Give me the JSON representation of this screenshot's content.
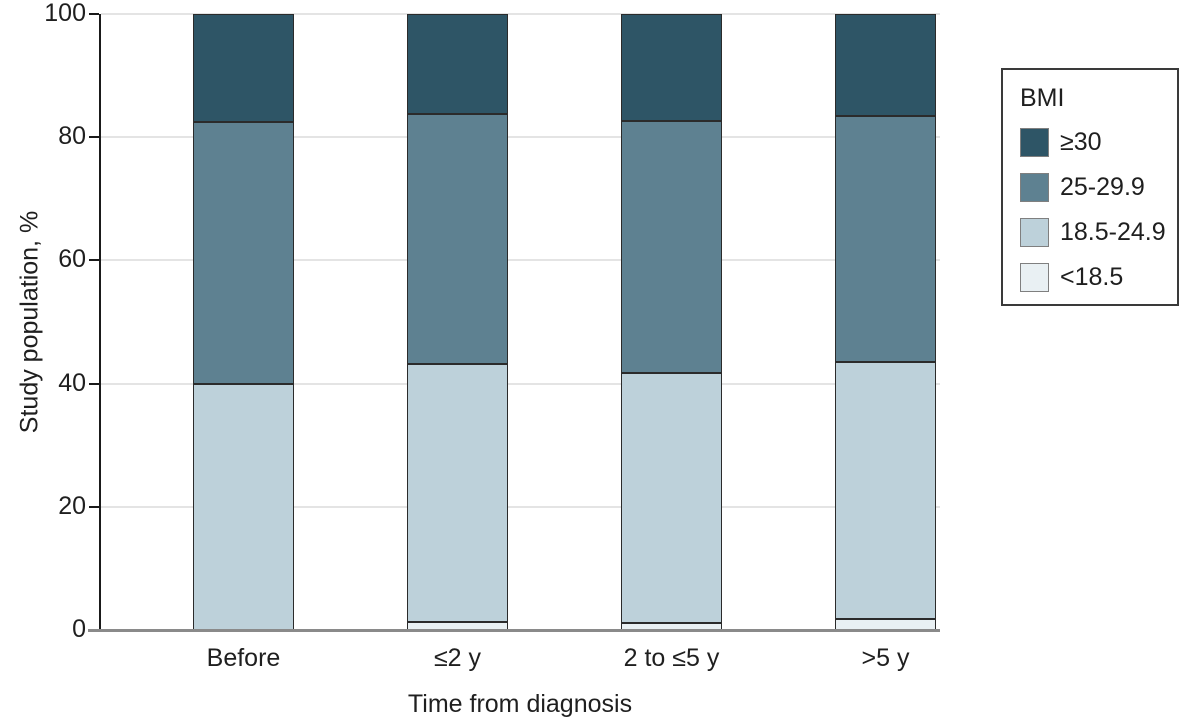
{
  "chart_data": {
    "type": "bar",
    "stacked": true,
    "title": "",
    "xlabel": "Time from diagnosis",
    "ylabel": "Study population, %",
    "categories": [
      "Before",
      "≤2 y",
      "2 to ≤5 y",
      ">5 y"
    ],
    "series": [
      {
        "name": "<18.5",
        "color": "#E9F0F3",
        "values": [
          0,
          1.3,
          1.2,
          1.8
        ]
      },
      {
        "name": "18.5-24.9",
        "color": "#BDD1DA",
        "values": [
          40.0,
          41.9,
          40.5,
          41.7
        ]
      },
      {
        "name": "25-29.9",
        "color": "#5E8191",
        "values": [
          42.4,
          40.5,
          41.0,
          40.0
        ]
      },
      {
        "name": "≥30",
        "color": "#2E5566",
        "values": [
          17.6,
          16.3,
          17.3,
          16.5
        ]
      }
    ],
    "ylim": [
      0,
      100
    ],
    "yticks": [
      0,
      20,
      40,
      60,
      80,
      100
    ],
    "grid": true,
    "legend": {
      "title": "BMI",
      "position": "right",
      "items_top_to_bottom": [
        "≥30",
        "25-29.9",
        "18.5-24.9",
        "<18.5"
      ]
    }
  },
  "colors": {
    "background": "#FFFFFF",
    "segment_border": "#2B2B2B",
    "gridline": "#E4E4E4",
    "y_axis": "#1A1A1A",
    "x_axis": "#8A8A8A",
    "text": "#1F1F1F",
    "legend_border": "#3A3A3A",
    "swatch_border": "#7F7F7F"
  }
}
